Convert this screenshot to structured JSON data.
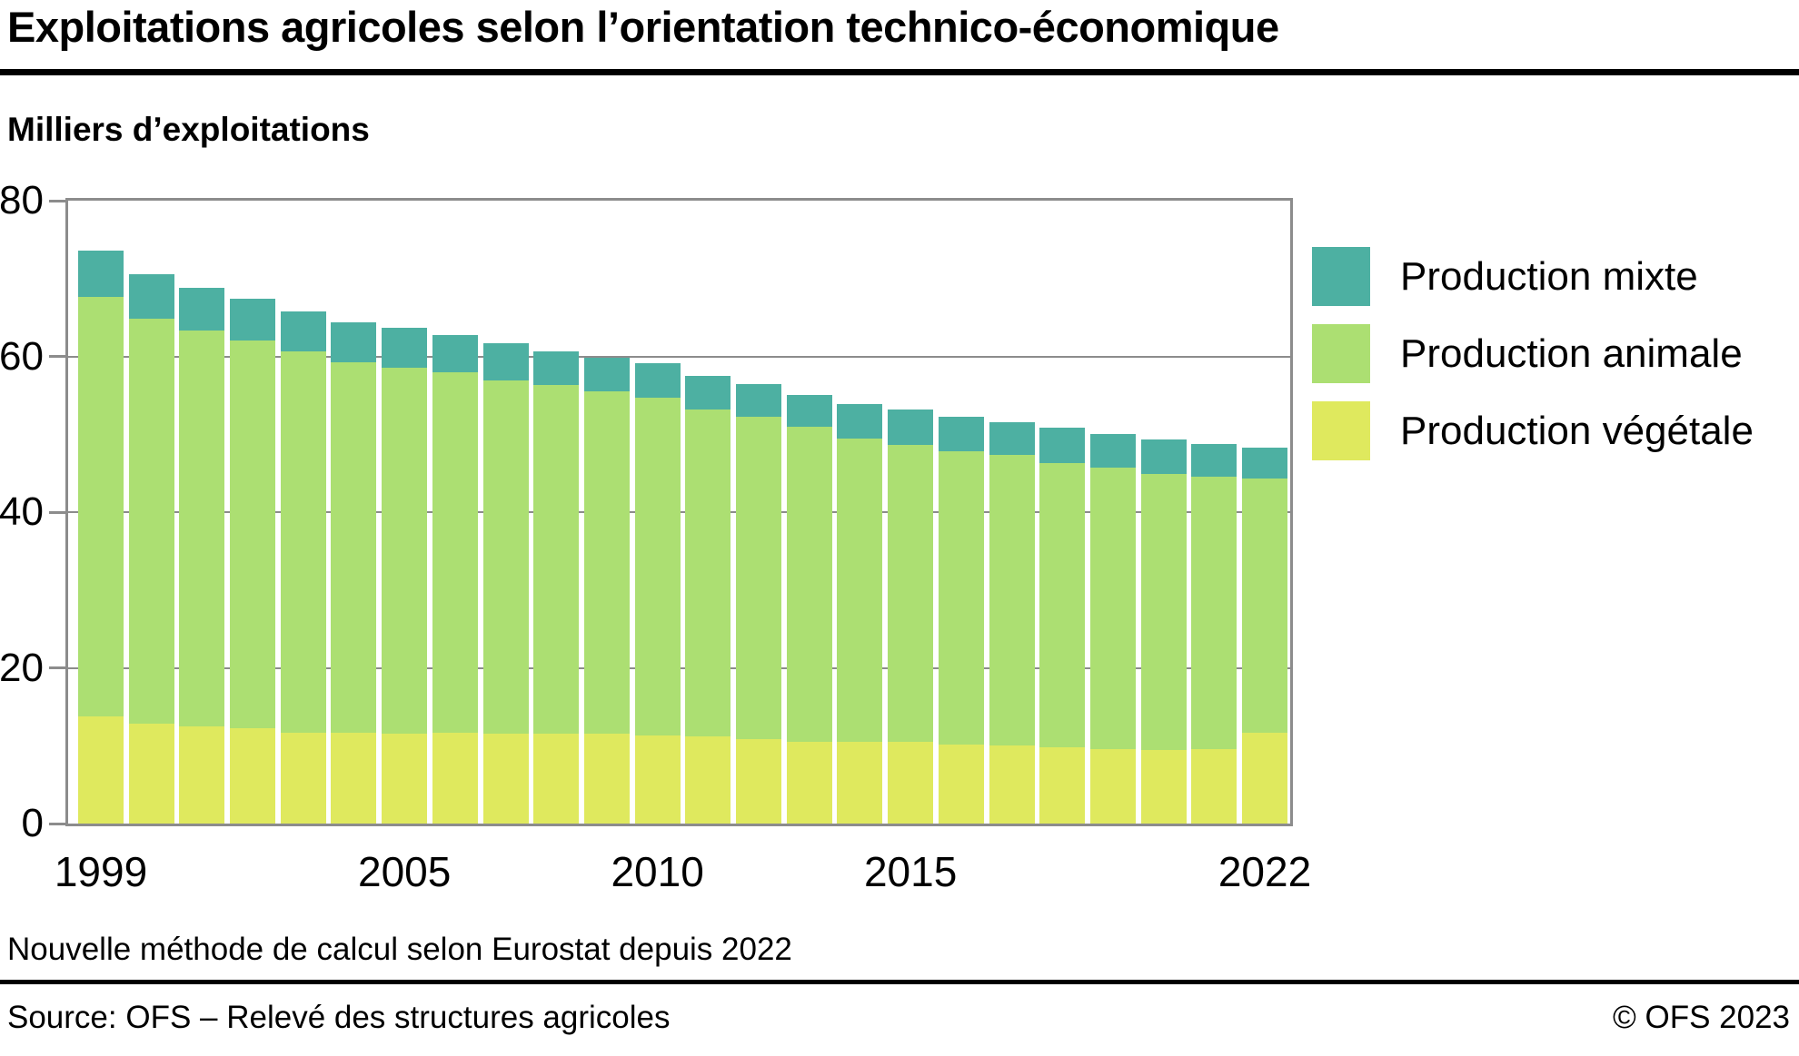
{
  "header": {
    "title": "Exploitations agricoles selon l’orientation technico-économique",
    "subtitle": "Milliers d’exploitations"
  },
  "legend": {
    "items": [
      {
        "label": "Production mixte",
        "color": "#4db0a2"
      },
      {
        "label": "Production animale",
        "color": "#acdf72"
      },
      {
        "label": "Production végétale",
        "color": "#dfe95e"
      }
    ]
  },
  "chart_data": {
    "type": "bar",
    "stacked": true,
    "title": "Exploitations agricoles selon l’orientation technico-économique",
    "ylabel": "Milliers d’exploitations",
    "ylim": [
      0,
      80
    ],
    "yticks": [
      0,
      20,
      40,
      60,
      80
    ],
    "grid": true,
    "grid_color": "#8c8c8c",
    "legend_position": "right",
    "categories": [
      1999,
      2000,
      2001,
      2002,
      2003,
      2004,
      2005,
      2006,
      2007,
      2008,
      2009,
      2010,
      2011,
      2012,
      2013,
      2014,
      2015,
      2016,
      2017,
      2018,
      2019,
      2020,
      2021,
      2022
    ],
    "xtick_labels": [
      {
        "label": "1999",
        "year": 1999
      },
      {
        "label": "2005",
        "year": 2005
      },
      {
        "label": "2010",
        "year": 2010
      },
      {
        "label": "2015",
        "year": 2015
      },
      {
        "label": "2022",
        "year": 2022
      }
    ],
    "series": [
      {
        "name": "Production végétale",
        "color": "#dfe95e",
        "values": [
          13.8,
          12.8,
          12.5,
          12.3,
          11.7,
          11.7,
          11.5,
          11.7,
          11.6,
          11.5,
          11.6,
          11.3,
          11.2,
          10.8,
          10.5,
          10.5,
          10.5,
          10.2,
          10.0,
          9.8,
          9.6,
          9.5,
          9.6,
          11.7
        ]
      },
      {
        "name": "Production animale",
        "color": "#acdf72",
        "values": [
          53.8,
          52.1,
          50.8,
          49.7,
          48.9,
          47.6,
          47.1,
          46.3,
          45.3,
          44.8,
          43.9,
          43.4,
          42.0,
          41.5,
          40.5,
          39.0,
          38.1,
          37.6,
          37.3,
          36.5,
          36.1,
          35.4,
          35.0,
          32.6
        ]
      },
      {
        "name": "Production mixte",
        "color": "#4db0a2",
        "values": [
          6.0,
          5.6,
          5.5,
          5.4,
          5.2,
          5.1,
          5.1,
          4.8,
          4.8,
          4.4,
          4.3,
          4.4,
          4.3,
          4.2,
          4.1,
          4.4,
          4.6,
          4.4,
          4.2,
          4.5,
          4.3,
          4.4,
          4.2,
          4.0
        ]
      }
    ],
    "totals": [
      73.6,
      70.5,
      68.8,
      67.4,
      65.8,
      64.4,
      63.7,
      62.8,
      61.7,
      60.7,
      59.8,
      59.1,
      57.5,
      56.5,
      55.1,
      53.9,
      53.2,
      52.2,
      51.5,
      50.8,
      50.0,
      49.3,
      48.8,
      48.3
    ]
  },
  "footnote": "Nouvelle méthode de calcul selon Eurostat depuis 2022",
  "footer": {
    "source": "Source: OFS – Relevé des structures agricoles",
    "copyright": "© OFS 2023"
  }
}
